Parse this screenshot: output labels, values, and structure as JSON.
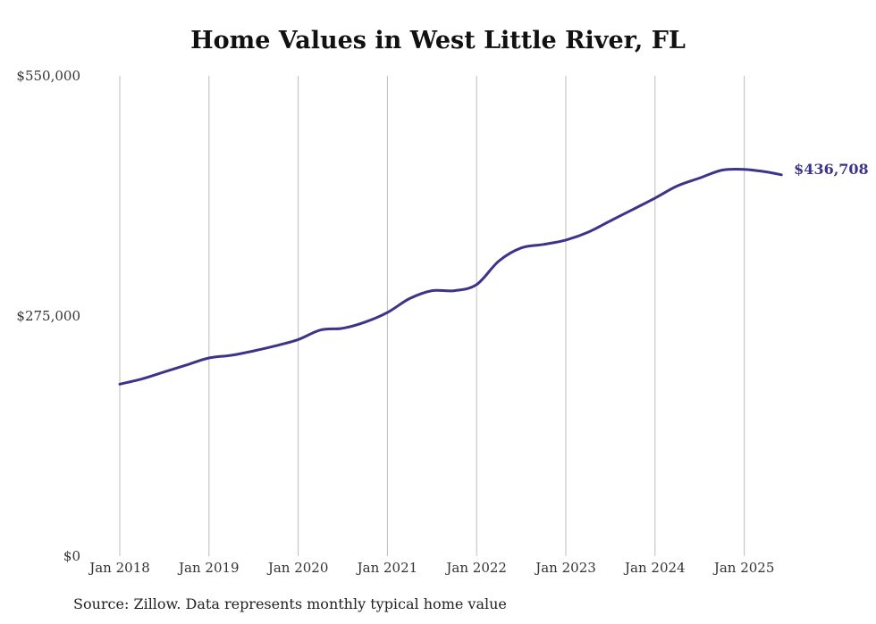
{
  "chart_data": {
    "type": "line",
    "title": "Home Values in West Little River, FL",
    "source": "Source: Zillow. Data represents monthly typical home value",
    "xlabel": "",
    "ylabel": "",
    "ylim": [
      0,
      550000
    ],
    "y_ticks": [
      {
        "value": 0,
        "label": "$0"
      },
      {
        "value": 275000,
        "label": "$275,000"
      },
      {
        "value": 550000,
        "label": "$550,000"
      }
    ],
    "x_ticks": [
      {
        "value": "2018-01",
        "label": "Jan 2018"
      },
      {
        "value": "2019-01",
        "label": "Jan 2019"
      },
      {
        "value": "2020-01",
        "label": "Jan 2020"
      },
      {
        "value": "2021-01",
        "label": "Jan 2021"
      },
      {
        "value": "2022-01",
        "label": "Jan 2022"
      },
      {
        "value": "2023-01",
        "label": "Jan 2023"
      },
      {
        "value": "2024-01",
        "label": "Jan 2024"
      },
      {
        "value": "2025-01",
        "label": "Jan 2025"
      }
    ],
    "grid": {
      "vertical": true,
      "horizontal": false
    },
    "line_color": "#3c3489",
    "end_label": "$436,708",
    "series": [
      {
        "x": [
          "2018-01",
          "2018-04",
          "2018-07",
          "2018-10",
          "2019-01",
          "2019-04",
          "2019-07",
          "2019-10",
          "2020-01",
          "2020-04",
          "2020-07",
          "2020-10",
          "2021-01",
          "2021-04",
          "2021-07",
          "2021-10",
          "2022-01",
          "2022-04",
          "2022-07",
          "2022-10",
          "2023-01",
          "2023-04",
          "2023-07",
          "2023-10",
          "2024-01",
          "2024-04",
          "2024-07",
          "2024-10",
          "2025-01",
          "2025-04",
          "2025-06"
        ],
        "y": [
          197000,
          203000,
          211000,
          219000,
          227000,
          230000,
          235000,
          241000,
          248000,
          259000,
          261000,
          268000,
          279000,
          295000,
          304000,
          304000,
          311000,
          338000,
          353000,
          357000,
          362000,
          371000,
          384000,
          397000,
          410000,
          424000,
          433000,
          442000,
          443000,
          440000,
          436708
        ]
      }
    ]
  }
}
